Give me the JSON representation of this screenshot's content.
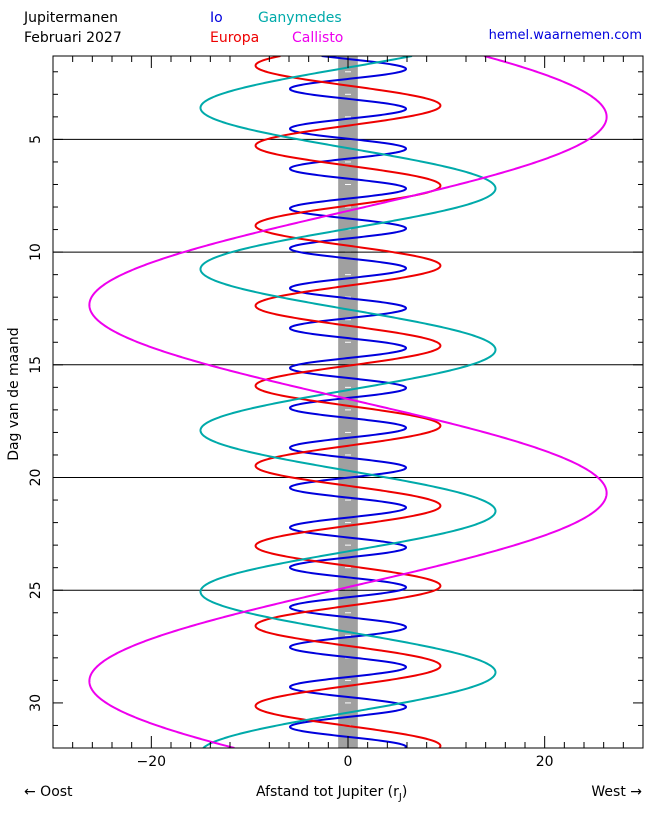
{
  "header": {
    "title": "Jupitermanen",
    "subtitle": "Februari  2027",
    "website": "hemel.waarnemen.com"
  },
  "colors": {
    "io": "#0000dd",
    "europa": "#ee0000",
    "ganymedes": "#00aaaa",
    "callisto": "#ee00ee",
    "jupiter_band": "#a0a0a0",
    "gridline": "#000000"
  },
  "chart_data": {
    "type": "line",
    "title": "Jupitermanen",
    "subtitle": "Februari  2027",
    "xlabel": "Afstand tot Jupiter (r",
    "xlabel_sub": "J",
    "xlabel_close": ")",
    "ylabel": "Dag van de maand",
    "left_note": "← Oost",
    "right_note": "West →",
    "xlim": [
      -30,
      30
    ],
    "ylim": [
      1.3,
      32
    ],
    "y_inverted": true,
    "xticks": [
      -20,
      0,
      20
    ],
    "xtick_labels": [
      "−20",
      "0",
      "20"
    ],
    "yticks": [
      5,
      10,
      15,
      20,
      25,
      30
    ],
    "ytick_labels": [
      "5",
      "10",
      "15",
      "20",
      "25",
      "30"
    ],
    "horizontal_lines_at_days": [
      5,
      10,
      15,
      20,
      25
    ],
    "jupiter_band_halfwidth": 1,
    "legend": [
      {
        "name": "Io",
        "color_key": "io"
      },
      {
        "name": "Ganymedes",
        "color_key": "ganymedes"
      },
      {
        "name": "Europa",
        "color_key": "europa"
      },
      {
        "name": "Callisto",
        "color_key": "callisto"
      }
    ],
    "series": [
      {
        "name": "Io",
        "color_key": "io",
        "amplitude": 5.9,
        "period_days": 1.769,
        "phase_day": 1.875,
        "phase_sign": 1
      },
      {
        "name": "Europa",
        "color_key": "europa",
        "amplitude": 9.4,
        "period_days": 3.551,
        "phase_day": 3.5,
        "phase_sign": 1
      },
      {
        "name": "Ganymedes",
        "color_key": "ganymedes",
        "amplitude": 15.0,
        "period_days": 7.155,
        "phase_day": 3.6,
        "phase_sign": -1
      },
      {
        "name": "Callisto",
        "color_key": "callisto",
        "amplitude": 26.3,
        "period_days": 16.69,
        "phase_day": 4.0,
        "phase_sign": 1
      }
    ]
  }
}
